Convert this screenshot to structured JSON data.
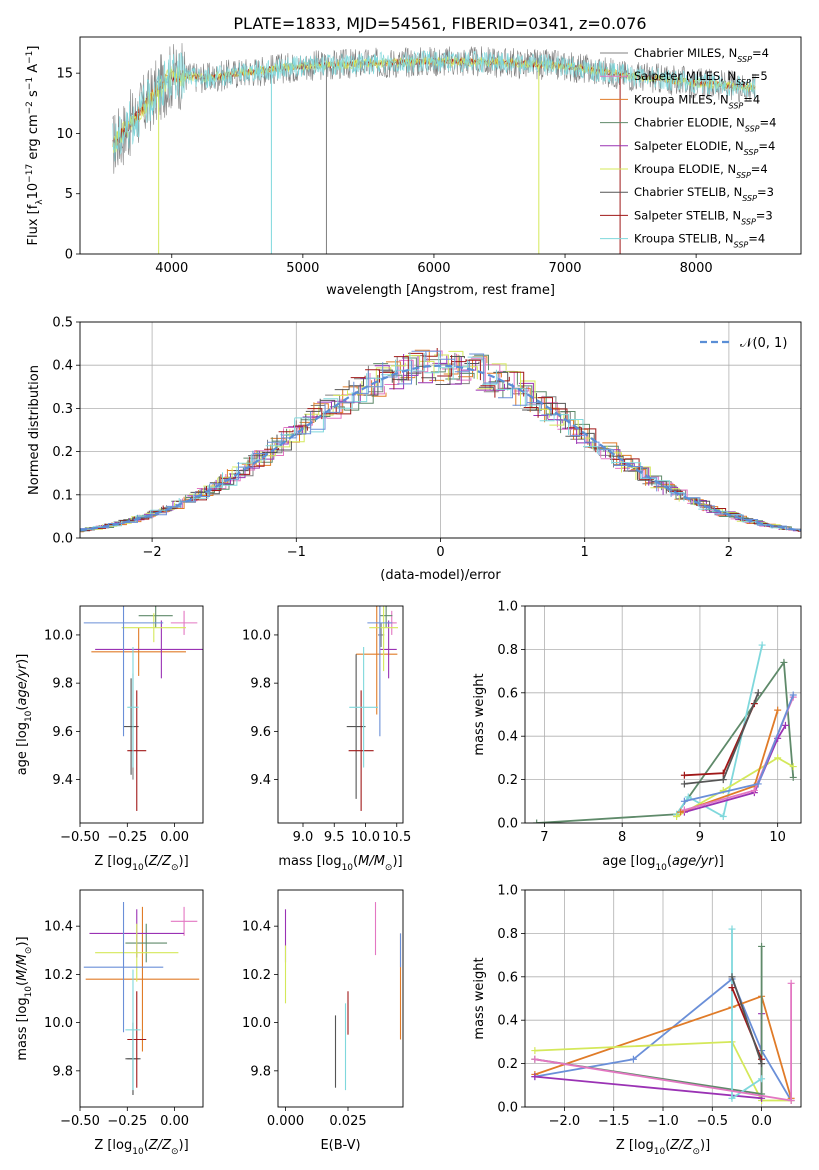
{
  "figure_title": "PLATE=1833, MJD=54561, FIBERID=0341, z=0.076",
  "colors": {
    "Chabrier MILES": "#808080",
    "Salpeter MILES": "#e377c2",
    "Kroupa MILES": "#e07b28",
    "Chabrier ELODIE": "#5f8a6a",
    "Salpeter ELODIE": "#9a32b4",
    "Kroupa ELODIE": "#d4e85a",
    "Chabrier STELIB": "#555555",
    "Salpeter STELIB": "#a01818",
    "Kroupa STELIB": "#7fd8dc",
    "blue": "#6a8fd8",
    "gauss": "#5a8ed6"
  },
  "chart_data": [
    {
      "id": "spectrum",
      "type": "line",
      "xlabel": "wavelength [Angstrom, rest frame]",
      "ylabel": "Flux [f_λ10^-17 erg cm^-2 s^-1 A^-1]",
      "xlim": [
        3300,
        8800
      ],
      "ylim": [
        0,
        18
      ],
      "xticks": [
        4000,
        5000,
        6000,
        7000,
        8000
      ],
      "yticks": [
        0,
        5,
        10,
        15
      ],
      "legend_position": "right",
      "legend": [
        "Chabrier MILES, N_SSP=4",
        "Salpeter MILES, N_SSP=5",
        "Kroupa MILES, N_SSP=4",
        "Chabrier ELODIE, N_SSP=4",
        "Salpeter ELODIE, N_SSP=4",
        "Kroupa ELODIE, N_SSP=4",
        "Chabrier STELIB, N_SSP=3",
        "Salpeter STELIB, N_SSP=3",
        "Kroupa STELIB, N_SSP=4"
      ],
      "continuum": [
        [
          3550,
          9.0
        ],
        [
          3700,
          11.0
        ],
        [
          3850,
          13.0
        ],
        [
          4000,
          14.8
        ],
        [
          4300,
          14.6
        ],
        [
          4500,
          15.0
        ],
        [
          5000,
          15.6
        ],
        [
          5500,
          15.8
        ],
        [
          6000,
          16.0
        ],
        [
          6500,
          15.9
        ],
        [
          7000,
          15.6
        ],
        [
          7500,
          14.8
        ],
        [
          8000,
          14.2
        ],
        [
          8450,
          13.8
        ]
      ],
      "dips": [
        [
          3900,
          0.0
        ],
        [
          4760,
          0.0
        ],
        [
          5180,
          0.0
        ],
        [
          6800,
          0.0
        ],
        [
          7420,
          0.0
        ]
      ]
    },
    {
      "id": "residuals",
      "type": "line",
      "xlabel": "(data-model)/error",
      "ylabel": "Normed distribution",
      "xlim": [
        -2.5,
        2.5
      ],
      "ylim": [
        0,
        0.5
      ],
      "xticks": [
        "−2",
        "−1",
        "0",
        "1",
        "2"
      ],
      "yticks": [
        "0.0",
        "0.1",
        "0.2",
        "0.3",
        "0.4",
        "0.5"
      ],
      "legend": [
        "𝒩(0, 1)"
      ],
      "legend_position": "top-right",
      "grid": true
    },
    {
      "id": "age_vs_Z",
      "type": "scatter",
      "xlabel": "Z [log10(Z/Z⊙)]",
      "ylabel": "age  [log10(age/yr)]",
      "xlim": [
        -0.5,
        0.15
      ],
      "ylim": [
        9.22,
        10.12
      ],
      "xticks": [
        "−0.50",
        "−0.25",
        "0.00"
      ],
      "yticks": [
        "9.4",
        "9.6",
        "9.8",
        "10.0"
      ],
      "points": [
        {
          "model": "Chabrier MILES",
          "x": -0.22,
          "xerr": 0.01,
          "y": 9.62,
          "yerr": 0.22
        },
        {
          "model": "Salpeter MILES",
          "x": 0.05,
          "xerr": 0.07,
          "y": 10.05,
          "yerr": 0.05
        },
        {
          "model": "Kroupa MILES",
          "x": -0.19,
          "xerr": 0.25,
          "y": 9.93,
          "yerr": 0.1
        },
        {
          "model": "Chabrier ELODIE",
          "x": -0.1,
          "xerr": 0.09,
          "y": 10.08,
          "yerr": 0.05
        },
        {
          "model": "Salpeter ELODIE",
          "x": -0.07,
          "xerr": 0.35,
          "y": 9.94,
          "yerr": 0.12
        },
        {
          "model": "Kroupa ELODIE",
          "x": -0.11,
          "xerr": 0.17,
          "y": 10.03,
          "yerr": 0.06
        },
        {
          "model": "Chabrier STELIB",
          "x": -0.23,
          "xerr": 0.04,
          "y": 9.62,
          "yerr": 0.2
        },
        {
          "model": "Salpeter STELIB",
          "x": -0.2,
          "xerr": 0.05,
          "y": 9.52,
          "yerr": 0.25
        },
        {
          "model": "Kroupa STELIB",
          "x": -0.22,
          "xerr": 0.03,
          "y": 9.7,
          "yerr": 0.25
        },
        {
          "model": "blue",
          "x": -0.27,
          "xerr": 0.21,
          "y": 10.05,
          "yerr": 0.47
        }
      ]
    },
    {
      "id": "age_vs_mass",
      "type": "scatter",
      "xlabel": "mass [log10(M/M⊙)]",
      "ylabel": "",
      "xlim": [
        8.6,
        10.6
      ],
      "ylim": [
        9.22,
        10.12
      ],
      "xticks": [
        "9.0",
        "9.5",
        "10.0",
        "10.5"
      ],
      "yticks": [
        "9.4",
        "9.6",
        "9.8",
        "10.0"
      ],
      "points": [
        {
          "model": "Chabrier MILES",
          "x": 10.25,
          "xerr": 0.05,
          "y": 10.0,
          "yerr": 0.05
        },
        {
          "model": "Salpeter MILES",
          "x": 10.42,
          "xerr": 0.08,
          "y": 10.05,
          "yerr": 0.05
        },
        {
          "model": "Kroupa MILES",
          "x": 10.18,
          "xerr": 0.33,
          "y": 9.92,
          "yerr": 0.25
        },
        {
          "model": "Chabrier ELODIE",
          "x": 10.33,
          "xerr": 0.1,
          "y": 10.08,
          "yerr": 0.05
        },
        {
          "model": "Salpeter ELODIE",
          "x": 10.37,
          "xerr": 0.13,
          "y": 9.94,
          "yerr": 0.12
        },
        {
          "model": "Kroupa ELODIE",
          "x": 10.29,
          "xerr": 0.23,
          "y": 10.03,
          "yerr": 0.18
        },
        {
          "model": "Chabrier STELIB",
          "x": 9.85,
          "xerr": 0.15,
          "y": 9.62,
          "yerr": 0.3
        },
        {
          "model": "Salpeter STELIB",
          "x": 9.93,
          "xerr": 0.2,
          "y": 9.52,
          "yerr": 0.25
        },
        {
          "model": "Kroupa STELIB",
          "x": 9.97,
          "xerr": 0.23,
          "y": 9.7,
          "yerr": 0.25
        },
        {
          "model": "blue",
          "x": 10.23,
          "xerr": 0.2,
          "y": 10.05,
          "yerr": 0.47
        }
      ]
    },
    {
      "id": "weight_vs_age",
      "type": "line",
      "xlabel": "age  [log10(age/yr)]",
      "ylabel": "mass weight",
      "xlim": [
        6.75,
        10.3
      ],
      "ylim": [
        0,
        1
      ],
      "xticks": [
        "7",
        "8",
        "9",
        "10"
      ],
      "yticks": [
        "0.0",
        "0.2",
        "0.4",
        "0.6",
        "0.8",
        "1.0"
      ],
      "grid": true,
      "series": [
        {
          "model": "Chabrier ELODIE",
          "x": [
            6.9,
            8.7,
            10.08,
            10.2
          ],
          "y": [
            0.0,
            0.04,
            0.74,
            0.21
          ]
        },
        {
          "model": "Kroupa STELIB",
          "x": [
            8.7,
            8.85,
            9.3,
            9.8
          ],
          "y": [
            0.04,
            0.12,
            0.03,
            0.82
          ]
        },
        {
          "model": "Salpeter STELIB",
          "x": [
            8.8,
            9.3,
            9.7
          ],
          "y": [
            0.22,
            0.23,
            0.55
          ]
        },
        {
          "model": "Chabrier STELIB",
          "x": [
            8.8,
            9.3,
            9.75
          ],
          "y": [
            0.18,
            0.2,
            0.6
          ]
        },
        {
          "model": "Kroupa ELODIE",
          "x": [
            8.7,
            9.3,
            10.0,
            10.2
          ],
          "y": [
            0.03,
            0.15,
            0.3,
            0.26
          ]
        },
        {
          "model": "Salpeter ELODIE",
          "x": [
            8.8,
            9.7,
            10.0,
            10.1
          ],
          "y": [
            0.05,
            0.14,
            0.39,
            0.45
          ]
        },
        {
          "model": "Kroupa MILES",
          "x": [
            8.75,
            9.7,
            10.0
          ],
          "y": [
            0.05,
            0.17,
            0.52
          ]
        },
        {
          "model": "Salpeter MILES",
          "x": [
            8.8,
            9.7,
            10.2
          ],
          "y": [
            0.06,
            0.15,
            0.58
          ]
        },
        {
          "model": "blue",
          "x": [
            8.8,
            9.75,
            10.2
          ],
          "y": [
            0.1,
            0.18,
            0.59
          ]
        }
      ]
    },
    {
      "id": "mass_vs_Z",
      "type": "scatter",
      "xlabel": "Z [log10(Z/Z⊙)]",
      "ylabel": "mass [log10(M/M⊙)]",
      "xlim": [
        -0.5,
        0.15
      ],
      "ylim": [
        9.65,
        10.55
      ],
      "xticks": [
        "−0.50",
        "−0.25",
        "0.00"
      ],
      "yticks": [
        "9.8",
        "10.0",
        "10.2",
        "10.4"
      ],
      "points": [
        {
          "model": "Chabrier MILES",
          "x": -0.22,
          "xerr": 0.03,
          "y": 9.85,
          "yerr": 0.15
        },
        {
          "model": "Salpeter MILES",
          "x": 0.05,
          "xerr": 0.07,
          "y": 10.42,
          "yerr": 0.06
        },
        {
          "model": "Kroupa MILES",
          "x": -0.17,
          "xerr": 0.3,
          "y": 10.18,
          "yerr": 0.3
        },
        {
          "model": "Chabrier ELODIE",
          "x": -0.15,
          "xerr": 0.11,
          "y": 10.33,
          "yerr": 0.08
        },
        {
          "model": "Salpeter ELODIE",
          "x": -0.2,
          "xerr": 0.25,
          "y": 10.37,
          "yerr": 0.1
        },
        {
          "model": "Kroupa ELODIE",
          "x": -0.2,
          "xerr": 0.22,
          "y": 10.29,
          "yerr": 0.12
        },
        {
          "model": "Chabrier STELIB",
          "x": -0.22,
          "xerr": 0.04,
          "y": 9.85,
          "yerr": 0.15
        },
        {
          "model": "Salpeter STELIB",
          "x": -0.2,
          "xerr": 0.05,
          "y": 9.93,
          "yerr": 0.2
        },
        {
          "model": "Kroupa STELIB",
          "x": -0.22,
          "xerr": 0.04,
          "y": 9.97,
          "yerr": 0.25
        },
        {
          "model": "blue",
          "x": -0.27,
          "xerr": 0.21,
          "y": 10.23,
          "yerr": 0.27
        }
      ]
    },
    {
      "id": "mass_vs_ebv",
      "type": "scatter",
      "xlabel": "E(B-V)",
      "ylabel": "",
      "xlim": [
        -0.003,
        0.047
      ],
      "ylim": [
        9.65,
        10.55
      ],
      "xticks": [
        "0.000",
        "0.025"
      ],
      "yticks": [
        "9.8",
        "10.0",
        "10.2",
        "10.4"
      ],
      "points": [
        {
          "model": "Salpeter ELODIE",
          "x": 0.0,
          "y": 10.36,
          "yerr": 0.11
        },
        {
          "model": "Kroupa ELODIE",
          "x": 0.0,
          "y": 10.2,
          "yerr": 0.12
        },
        {
          "model": "Chabrier STELIB",
          "x": 0.02,
          "y": 9.88,
          "yerr": 0.15
        },
        {
          "model": "Kroupa STELIB",
          "x": 0.024,
          "y": 9.9,
          "yerr": 0.18
        },
        {
          "model": "Salpeter STELIB",
          "x": 0.025,
          "y": 10.04,
          "yerr": 0.09
        },
        {
          "model": "Salpeter MILES",
          "x": 0.036,
          "y": 10.39,
          "yerr": 0.11
        },
        {
          "model": "Kroupa MILES",
          "x": 0.046,
          "y": 10.15,
          "yerr": 0.22
        },
        {
          "model": "blue",
          "x": 0.046,
          "y": 10.3,
          "yerr": 0.07
        }
      ]
    },
    {
      "id": "weight_vs_Z",
      "type": "line",
      "xlabel": "Z [log10(Z/Z⊙)]",
      "ylabel": "mass weight",
      "xlim": [
        -2.4,
        0.4
      ],
      "ylim": [
        0,
        1
      ],
      "xticks": [
        "−2.0",
        "−1.5",
        "−1.0",
        "−0.5",
        "0.0"
      ],
      "yticks": [
        "0.0",
        "0.2",
        "0.4",
        "0.6",
        "0.8",
        "1.0"
      ],
      "grid": true,
      "series": [
        {
          "model": "blue",
          "x": [
            -2.3,
            -1.3,
            -0.3,
            0.0,
            0.3
          ],
          "y": [
            0.14,
            0.22,
            0.59,
            0.26,
            0.03
          ]
        },
        {
          "model": "Kroupa MILES",
          "x": [
            -2.3,
            -0.3,
            0.0,
            0.3
          ],
          "y": [
            0.15,
            0.46,
            0.51,
            0.04
          ]
        },
        {
          "model": "Kroupa ELODIE",
          "x": [
            -2.3,
            -0.3,
            0.0,
            0.3
          ],
          "y": [
            0.26,
            0.3,
            0.03,
            0.03
          ]
        },
        {
          "model": "Salpeter ELODIE",
          "x": [
            -2.3,
            0.0,
            0.0
          ],
          "y": [
            0.14,
            0.04,
            0.43
          ]
        },
        {
          "model": "Chabrier ELODIE",
          "x": [
            -2.3,
            0.0,
            0.0
          ],
          "y": [
            0.22,
            0.06,
            0.74
          ]
        },
        {
          "model": "Kroupa STELIB",
          "x": [
            -0.3,
            -0.3,
            0.0
          ],
          "y": [
            0.82,
            0.04,
            0.13
          ]
        },
        {
          "model": "Salpeter STELIB",
          "x": [
            -0.3,
            0.0
          ],
          "y": [
            0.55,
            0.22
          ]
        },
        {
          "model": "Chabrier STELIB",
          "x": [
            -0.3,
            0.0
          ],
          "y": [
            0.6,
            0.2
          ]
        },
        {
          "model": "Salpeter MILES",
          "x": [
            -2.3,
            0.3,
            0.3
          ],
          "y": [
            0.22,
            0.03,
            0.57
          ]
        }
      ]
    }
  ]
}
